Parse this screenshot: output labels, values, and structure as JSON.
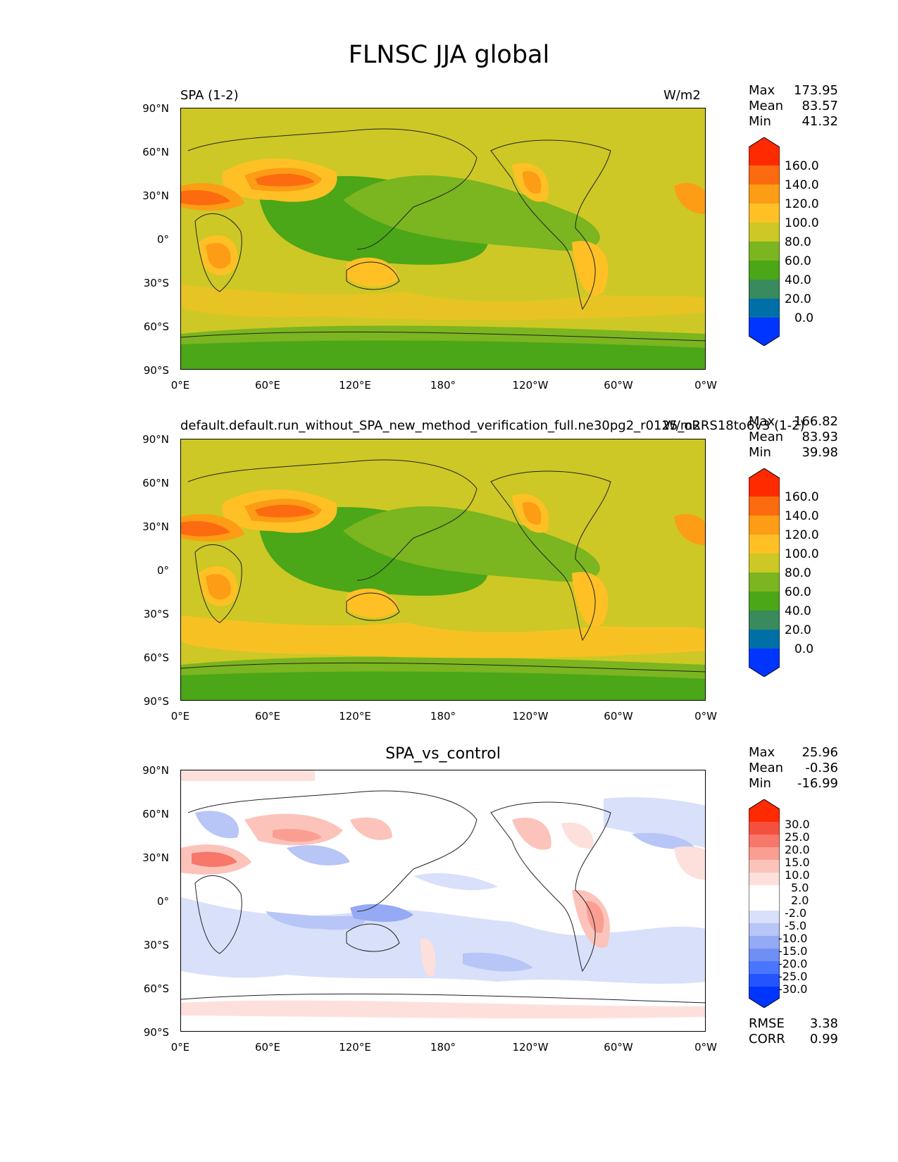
{
  "figure_title": "FLNSC JJA global",
  "panels": [
    {
      "left_title": "SPA (1-2)",
      "right_title": "W/m2",
      "center_title": "",
      "stats": {
        "max_label": "Max",
        "max": "173.95",
        "mean_label": "Mean",
        "mean": "83.57",
        "min_label": "Min",
        "min": "41.32"
      },
      "colorbar": {
        "labels": [
          "160.0",
          "140.0",
          "120.0",
          "100.0",
          "80.0",
          "60.0",
          "40.0",
          "20.0",
          "0.0"
        ]
      }
    },
    {
      "left_title": "default.default.run_without_SPA_new_method_verification_full.ne30pg2_r0125_oRRS18to6v3 (1-2)",
      "right_title": "W/m2",
      "center_title": "",
      "stats": {
        "max_label": "Max",
        "max": "166.82",
        "mean_label": "Mean",
        "mean": "83.93",
        "min_label": "Min",
        "min": "39.98"
      },
      "colorbar": {
        "labels": [
          "160.0",
          "140.0",
          "120.0",
          "100.0",
          "80.0",
          "60.0",
          "40.0",
          "20.0",
          "0.0"
        ]
      }
    },
    {
      "left_title": "",
      "right_title": "",
      "center_title": "SPA_vs_control",
      "stats": {
        "max_label": "Max",
        "max": "25.96",
        "mean_label": "Mean",
        "mean": "-0.36",
        "min_label": "Min",
        "min": "-16.99"
      },
      "colorbar": {
        "labels": [
          "30.0",
          "25.0",
          "20.0",
          "15.0",
          "10.0",
          "5.0",
          "2.0",
          "-2.0",
          "-5.0",
          "-10.0",
          "-15.0",
          "-20.0",
          "-25.0",
          "-30.0"
        ]
      },
      "extra_stats": {
        "rmse_label": "RMSE",
        "rmse": "3.38",
        "corr_label": "CORR",
        "corr": "0.99"
      }
    }
  ],
  "axes": {
    "lat_ticks": [
      "90°N",
      "60°N",
      "30°N",
      "0°",
      "30°S",
      "60°S",
      "90°S"
    ],
    "lon_ticks": [
      "0°E",
      "60°E",
      "120°E",
      "180°",
      "120°W",
      "60°W",
      "0°W"
    ]
  },
  "colors": {
    "abs_scale": [
      "#0035ff",
      "#006fa8",
      "#398a5c",
      "#4ba618",
      "#7bb51f",
      "#cdc825",
      "#fec025",
      "#fd9c15",
      "#fc6b0f",
      "#ff2a00"
    ],
    "diff_scale": [
      "#0035ff",
      "#2255ff",
      "#4a75ff",
      "#6f8ff5",
      "#95aaf5",
      "#b7c5f7",
      "#d8e0fa",
      "#ffffff",
      "#fde0dc",
      "#fcc3bb",
      "#fb9e92",
      "#f7776a",
      "#f5503f",
      "#ff2a00"
    ]
  }
}
